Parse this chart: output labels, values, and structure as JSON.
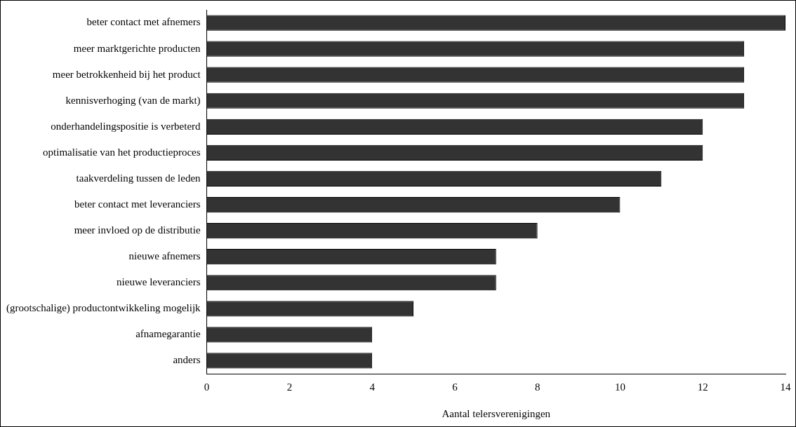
{
  "chart_data": {
    "type": "bar",
    "orientation": "horizontal",
    "xlabel": "Aantal telersverenigingen",
    "categories": [
      "beter contact met afnemers",
      "meer marktgerichte producten",
      "meer betrokkenheid bij het product",
      "kennisverhoging (van de markt)",
      "onderhandelingspositie is verbeterd",
      "optimalisatie van het productieproces",
      "taakverdeling tussen de leden",
      "beter contact met leveranciers",
      "meer invloed op de distributie",
      "nieuwe afnemers",
      "nieuwe leveranciers",
      "(grootschalige) productontwikkeling mogelijk",
      "afnamegarantie",
      "anders"
    ],
    "values": [
      14,
      13,
      13,
      13,
      12,
      12,
      11,
      10,
      8,
      7,
      7,
      5,
      4,
      4
    ],
    "color": "#333333",
    "xlim": [
      0,
      14
    ],
    "xticks": [
      0,
      2,
      4,
      6,
      8,
      10,
      12,
      14
    ],
    "grid": false,
    "legend": false
  }
}
